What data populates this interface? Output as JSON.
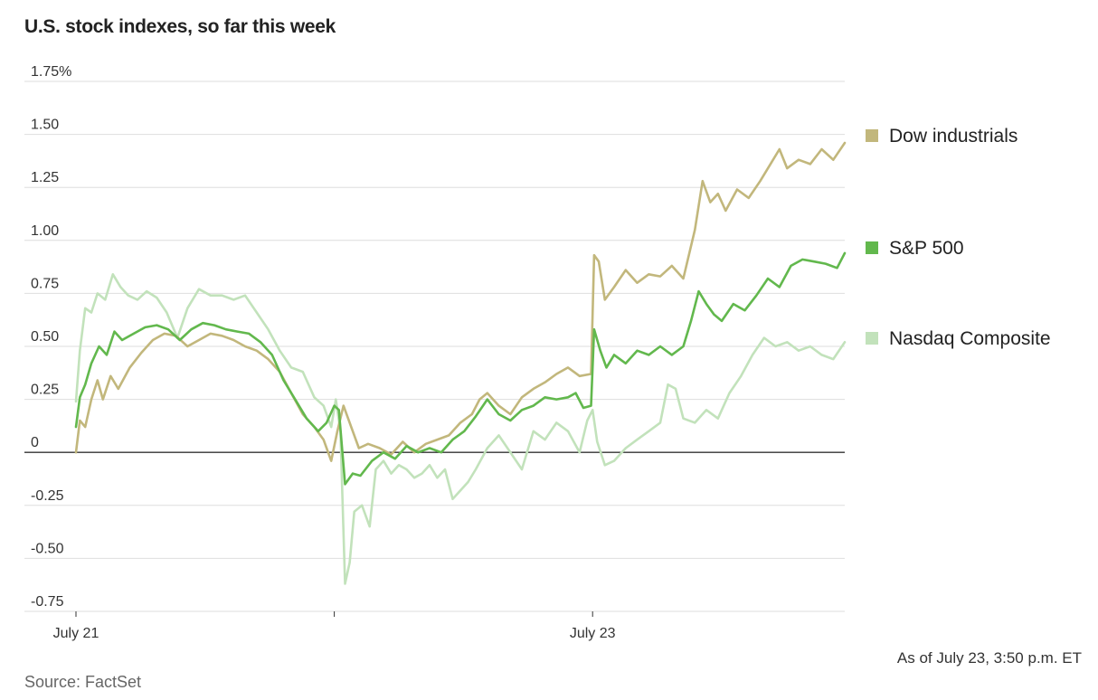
{
  "title": "U.S. stock indexes, so far this week",
  "source": "Source: FactSet",
  "as_of": "As of July 23, 3:50 p.m. ET",
  "colors": {
    "dow": "#c2b77c",
    "sp500": "#62b84d",
    "nasdaq": "#c2e2bb",
    "grid": "#dedede",
    "zero": "#333333"
  },
  "chart_data": {
    "type": "line",
    "title": "U.S. stock indexes, so far this week",
    "ylabel": "",
    "xlabel": "",
    "ylim": [
      -0.75,
      1.75
    ],
    "xlim": [
      0,
      1
    ],
    "y_ticks": [
      1.75,
      1.5,
      1.25,
      1.0,
      0.75,
      0.5,
      0.25,
      0,
      -0.25,
      -0.5,
      -0.75
    ],
    "y_tick_labels": [
      "1.75%",
      "1.50",
      "1.25",
      "1.00",
      "0.75",
      "0.50",
      "0.25",
      "0",
      "-0.25",
      "-0.50",
      "-0.75"
    ],
    "x_ticks": [
      {
        "x": 0,
        "label": "July 21"
      },
      {
        "x": 0.336,
        "label": ""
      },
      {
        "x": 0.672,
        "label": "July 23"
      }
    ],
    "grid": true,
    "legend_position": "right",
    "series": [
      {
        "name": "Dow industrials",
        "color_key": "dow",
        "points": [
          [
            0.0,
            0.0
          ],
          [
            0.005,
            0.15
          ],
          [
            0.012,
            0.12
          ],
          [
            0.02,
            0.25
          ],
          [
            0.028,
            0.34
          ],
          [
            0.035,
            0.25
          ],
          [
            0.045,
            0.36
          ],
          [
            0.055,
            0.3
          ],
          [
            0.07,
            0.4
          ],
          [
            0.085,
            0.47
          ],
          [
            0.1,
            0.53
          ],
          [
            0.115,
            0.56
          ],
          [
            0.13,
            0.55
          ],
          [
            0.145,
            0.5
          ],
          [
            0.16,
            0.53
          ],
          [
            0.175,
            0.56
          ],
          [
            0.19,
            0.55
          ],
          [
            0.205,
            0.53
          ],
          [
            0.22,
            0.5
          ],
          [
            0.235,
            0.48
          ],
          [
            0.25,
            0.44
          ],
          [
            0.265,
            0.38
          ],
          [
            0.28,
            0.28
          ],
          [
            0.295,
            0.18
          ],
          [
            0.31,
            0.12
          ],
          [
            0.322,
            0.06
          ],
          [
            0.332,
            -0.04
          ],
          [
            0.34,
            0.1
          ],
          [
            0.348,
            0.22
          ],
          [
            0.358,
            0.12
          ],
          [
            0.368,
            0.02
          ],
          [
            0.38,
            0.04
          ],
          [
            0.395,
            0.02
          ],
          [
            0.41,
            -0.01
          ],
          [
            0.425,
            0.05
          ],
          [
            0.44,
            0.0
          ],
          [
            0.455,
            0.04
          ],
          [
            0.47,
            0.06
          ],
          [
            0.485,
            0.08
          ],
          [
            0.5,
            0.14
          ],
          [
            0.515,
            0.18
          ],
          [
            0.525,
            0.25
          ],
          [
            0.535,
            0.28
          ],
          [
            0.55,
            0.22
          ],
          [
            0.565,
            0.18
          ],
          [
            0.58,
            0.26
          ],
          [
            0.595,
            0.3
          ],
          [
            0.61,
            0.33
          ],
          [
            0.625,
            0.37
          ],
          [
            0.64,
            0.4
          ],
          [
            0.655,
            0.36
          ],
          [
            0.67,
            0.37
          ],
          [
            0.674,
            0.93
          ],
          [
            0.68,
            0.9
          ],
          [
            0.688,
            0.72
          ],
          [
            0.7,
            0.78
          ],
          [
            0.715,
            0.86
          ],
          [
            0.73,
            0.8
          ],
          [
            0.745,
            0.84
          ],
          [
            0.76,
            0.83
          ],
          [
            0.775,
            0.88
          ],
          [
            0.79,
            0.82
          ],
          [
            0.805,
            1.05
          ],
          [
            0.815,
            1.28
          ],
          [
            0.825,
            1.18
          ],
          [
            0.835,
            1.22
          ],
          [
            0.845,
            1.14
          ],
          [
            0.86,
            1.24
          ],
          [
            0.875,
            1.2
          ],
          [
            0.89,
            1.28
          ],
          [
            0.905,
            1.37
          ],
          [
            0.915,
            1.43
          ],
          [
            0.925,
            1.34
          ],
          [
            0.94,
            1.38
          ],
          [
            0.955,
            1.36
          ],
          [
            0.97,
            1.43
          ],
          [
            0.985,
            1.38
          ],
          [
            1.0,
            1.46
          ]
        ]
      },
      {
        "name": "S&P 500",
        "color_key": "sp500",
        "points": [
          [
            0.0,
            0.12
          ],
          [
            0.005,
            0.26
          ],
          [
            0.012,
            0.32
          ],
          [
            0.02,
            0.42
          ],
          [
            0.03,
            0.5
          ],
          [
            0.04,
            0.46
          ],
          [
            0.05,
            0.57
          ],
          [
            0.06,
            0.53
          ],
          [
            0.075,
            0.56
          ],
          [
            0.09,
            0.59
          ],
          [
            0.105,
            0.6
          ],
          [
            0.12,
            0.58
          ],
          [
            0.135,
            0.53
          ],
          [
            0.15,
            0.58
          ],
          [
            0.165,
            0.61
          ],
          [
            0.18,
            0.6
          ],
          [
            0.195,
            0.58
          ],
          [
            0.21,
            0.57
          ],
          [
            0.225,
            0.56
          ],
          [
            0.24,
            0.52
          ],
          [
            0.255,
            0.46
          ],
          [
            0.27,
            0.34
          ],
          [
            0.285,
            0.25
          ],
          [
            0.3,
            0.16
          ],
          [
            0.315,
            0.1
          ],
          [
            0.326,
            0.14
          ],
          [
            0.336,
            0.22
          ],
          [
            0.342,
            0.2
          ],
          [
            0.35,
            -0.15
          ],
          [
            0.36,
            -0.1
          ],
          [
            0.37,
            -0.11
          ],
          [
            0.385,
            -0.04
          ],
          [
            0.4,
            0.0
          ],
          [
            0.415,
            -0.03
          ],
          [
            0.43,
            0.03
          ],
          [
            0.445,
            0.0
          ],
          [
            0.46,
            0.02
          ],
          [
            0.475,
            0.0
          ],
          [
            0.49,
            0.06
          ],
          [
            0.505,
            0.1
          ],
          [
            0.52,
            0.17
          ],
          [
            0.535,
            0.25
          ],
          [
            0.55,
            0.18
          ],
          [
            0.565,
            0.15
          ],
          [
            0.58,
            0.2
          ],
          [
            0.595,
            0.22
          ],
          [
            0.61,
            0.26
          ],
          [
            0.625,
            0.25
          ],
          [
            0.64,
            0.26
          ],
          [
            0.65,
            0.28
          ],
          [
            0.66,
            0.21
          ],
          [
            0.67,
            0.22
          ],
          [
            0.674,
            0.58
          ],
          [
            0.682,
            0.48
          ],
          [
            0.69,
            0.4
          ],
          [
            0.7,
            0.46
          ],
          [
            0.715,
            0.42
          ],
          [
            0.73,
            0.48
          ],
          [
            0.745,
            0.46
          ],
          [
            0.76,
            0.5
          ],
          [
            0.775,
            0.46
          ],
          [
            0.79,
            0.5
          ],
          [
            0.8,
            0.62
          ],
          [
            0.81,
            0.76
          ],
          [
            0.82,
            0.7
          ],
          [
            0.83,
            0.65
          ],
          [
            0.84,
            0.62
          ],
          [
            0.855,
            0.7
          ],
          [
            0.87,
            0.67
          ],
          [
            0.885,
            0.74
          ],
          [
            0.9,
            0.82
          ],
          [
            0.915,
            0.78
          ],
          [
            0.93,
            0.88
          ],
          [
            0.945,
            0.91
          ],
          [
            0.96,
            0.9
          ],
          [
            0.975,
            0.89
          ],
          [
            0.99,
            0.87
          ],
          [
            1.0,
            0.94
          ]
        ]
      },
      {
        "name": "Nasdaq Composite",
        "color_key": "nasdaq",
        "points": [
          [
            0.0,
            0.24
          ],
          [
            0.005,
            0.48
          ],
          [
            0.012,
            0.68
          ],
          [
            0.02,
            0.66
          ],
          [
            0.028,
            0.75
          ],
          [
            0.038,
            0.72
          ],
          [
            0.048,
            0.84
          ],
          [
            0.058,
            0.78
          ],
          [
            0.068,
            0.74
          ],
          [
            0.08,
            0.72
          ],
          [
            0.092,
            0.76
          ],
          [
            0.105,
            0.73
          ],
          [
            0.118,
            0.66
          ],
          [
            0.132,
            0.54
          ],
          [
            0.145,
            0.68
          ],
          [
            0.16,
            0.77
          ],
          [
            0.175,
            0.74
          ],
          [
            0.19,
            0.74
          ],
          [
            0.205,
            0.72
          ],
          [
            0.22,
            0.74
          ],
          [
            0.235,
            0.66
          ],
          [
            0.25,
            0.58
          ],
          [
            0.265,
            0.48
          ],
          [
            0.28,
            0.4
          ],
          [
            0.295,
            0.38
          ],
          [
            0.31,
            0.26
          ],
          [
            0.322,
            0.22
          ],
          [
            0.332,
            0.12
          ],
          [
            0.338,
            0.25
          ],
          [
            0.344,
            0.1
          ],
          [
            0.35,
            -0.62
          ],
          [
            0.356,
            -0.52
          ],
          [
            0.362,
            -0.28
          ],
          [
            0.372,
            -0.25
          ],
          [
            0.382,
            -0.35
          ],
          [
            0.39,
            -0.08
          ],
          [
            0.4,
            -0.04
          ],
          [
            0.41,
            -0.1
          ],
          [
            0.42,
            -0.06
          ],
          [
            0.43,
            -0.08
          ],
          [
            0.44,
            -0.12
          ],
          [
            0.45,
            -0.1
          ],
          [
            0.46,
            -0.06
          ],
          [
            0.47,
            -0.12
          ],
          [
            0.48,
            -0.08
          ],
          [
            0.49,
            -0.22
          ],
          [
            0.5,
            -0.18
          ],
          [
            0.51,
            -0.14
          ],
          [
            0.52,
            -0.08
          ],
          [
            0.535,
            0.02
          ],
          [
            0.55,
            0.08
          ],
          [
            0.565,
            0.0
          ],
          [
            0.58,
            -0.08
          ],
          [
            0.595,
            0.1
          ],
          [
            0.61,
            0.06
          ],
          [
            0.625,
            0.14
          ],
          [
            0.64,
            0.1
          ],
          [
            0.655,
            0.0
          ],
          [
            0.665,
            0.15
          ],
          [
            0.672,
            0.2
          ],
          [
            0.678,
            0.05
          ],
          [
            0.688,
            -0.06
          ],
          [
            0.7,
            -0.04
          ],
          [
            0.715,
            0.02
          ],
          [
            0.73,
            0.06
          ],
          [
            0.745,
            0.1
          ],
          [
            0.76,
            0.14
          ],
          [
            0.77,
            0.32
          ],
          [
            0.78,
            0.3
          ],
          [
            0.79,
            0.16
          ],
          [
            0.805,
            0.14
          ],
          [
            0.82,
            0.2
          ],
          [
            0.835,
            0.16
          ],
          [
            0.85,
            0.28
          ],
          [
            0.865,
            0.36
          ],
          [
            0.88,
            0.46
          ],
          [
            0.895,
            0.54
          ],
          [
            0.91,
            0.5
          ],
          [
            0.925,
            0.52
          ],
          [
            0.94,
            0.48
          ],
          [
            0.955,
            0.5
          ],
          [
            0.97,
            0.46
          ],
          [
            0.985,
            0.44
          ],
          [
            1.0,
            0.52
          ]
        ]
      }
    ]
  }
}
